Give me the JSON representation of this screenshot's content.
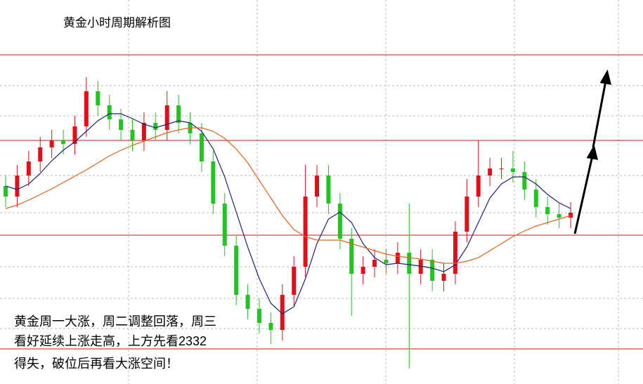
{
  "chart_data": {
    "type": "candlestick",
    "title": "黄金小时周期解析图",
    "annotations": [
      "黄金周一大涨，周二调整回落，周三",
      "看好延续上涨走高，上方先看2332",
      "得失，破位后再看大涨空间！"
    ],
    "ylim": [
      0,
      547
    ],
    "up_color": "#e0101a",
    "down_color": "#22c322",
    "open": [
      282,
      267,
      297,
      317,
      337,
      347,
      342,
      367,
      417,
      397,
      377,
      362,
      347,
      372,
      362,
      397,
      372,
      357,
      317,
      257,
      197,
      127,
      107,
      87,
      77,
      127,
      167,
      267,
      297,
      257,
      207,
      157,
      167,
      177,
      172,
      187,
      157,
      177,
      147,
      157,
      217,
      267,
      297,
      307,
      307,
      302,
      277,
      252,
      242,
      237
    ],
    "high": [
      297,
      312,
      332,
      352,
      362,
      362,
      382,
      437,
      432,
      412,
      392,
      377,
      387,
      387,
      417,
      412,
      387,
      372,
      332,
      272,
      212,
      142,
      122,
      102,
      142,
      182,
      312,
      312,
      312,
      272,
      222,
      182,
      192,
      192,
      202,
      257,
      192,
      192,
      172,
      232,
      292,
      347,
      322,
      322,
      332,
      317,
      292,
      267,
      257,
      259
    ],
    "low": [
      252,
      252,
      282,
      302,
      322,
      327,
      327,
      352,
      382,
      362,
      347,
      332,
      332,
      347,
      347,
      357,
      342,
      302,
      242,
      182,
      112,
      92,
      72,
      57,
      62,
      112,
      152,
      252,
      242,
      192,
      97,
      142,
      152,
      157,
      157,
      22,
      142,
      132,
      132,
      142,
      202,
      252,
      282,
      292,
      287,
      262,
      237,
      227,
      222,
      222
    ],
    "close": [
      267,
      297,
      317,
      337,
      347,
      342,
      367,
      417,
      397,
      377,
      362,
      347,
      372,
      362,
      397,
      372,
      357,
      317,
      257,
      197,
      127,
      107,
      87,
      77,
      127,
      167,
      267,
      297,
      257,
      207,
      157,
      167,
      177,
      172,
      187,
      157,
      177,
      147,
      157,
      217,
      267,
      297,
      307,
      307,
      302,
      277,
      252,
      242,
      237,
      244
    ],
    "series": [
      {
        "color": "#1a237e",
        "values": [
          282,
          277,
          285,
          300,
          318,
          333,
          345,
          360,
          375,
          385,
          385,
          378,
          370,
          365,
          370,
          375,
          372,
          360,
          335,
          295,
          245,
          195,
          150,
          115,
          100,
          110,
          150,
          200,
          235,
          245,
          230,
          200,
          180,
          170,
          172,
          170,
          168,
          165,
          160,
          170,
          195,
          230,
          265,
          285,
          295,
          295,
          285,
          270,
          258,
          250
        ]
      },
      {
        "color": "#e8641e",
        "values": [
          250,
          255,
          262,
          270,
          278,
          287,
          296,
          305,
          315,
          325,
          333,
          340,
          346,
          352,
          358,
          362,
          365,
          365,
          360,
          350,
          335,
          315,
          290,
          265,
          240,
          220,
          210,
          205,
          205,
          205,
          200,
          195,
          190,
          185,
          182,
          180,
          178,
          175,
          172,
          172,
          175,
          180,
          190,
          200,
          210,
          218,
          225,
          230,
          235,
          240
        ]
      }
    ],
    "levels": [
      469,
      347,
      212,
      50
    ],
    "level_color": "#e01010"
  }
}
